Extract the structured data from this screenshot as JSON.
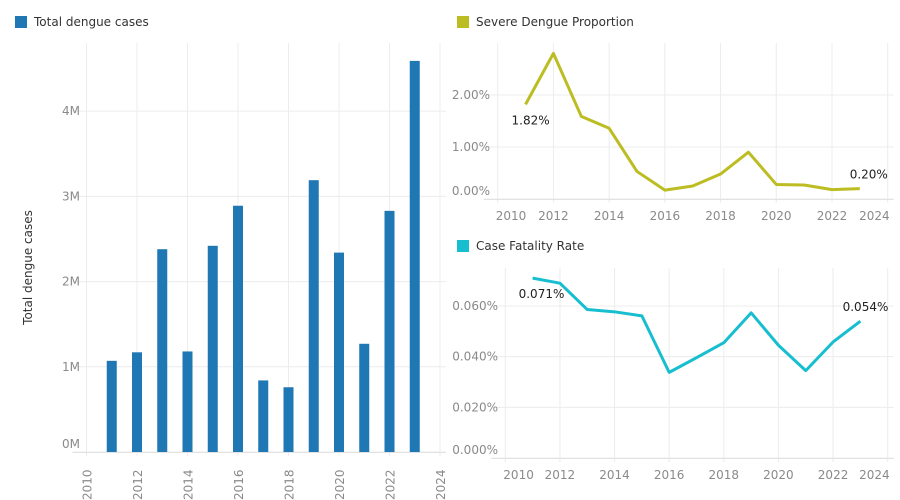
{
  "chart_data": [
    {
      "type": "bar",
      "legend": "Total dengue cases",
      "legend_position": "top-left",
      "ylabel": "Total dengue cases",
      "xlabel": "",
      "color": "#1f77b4",
      "x": [
        2011,
        2012,
        2013,
        2014,
        2015,
        2016,
        2017,
        2018,
        2019,
        2020,
        2021,
        2022,
        2023
      ],
      "values": [
        1070000,
        1170000,
        2380000,
        1180000,
        2420000,
        2890000,
        840000,
        760000,
        3190000,
        2340000,
        1270000,
        2830000,
        4590000
      ],
      "xlim": [
        2010,
        2024
      ],
      "ylim": [
        0,
        4800000
      ],
      "x_ticks": [
        "2010",
        "2012",
        "2014",
        "2016",
        "2018",
        "2020",
        "2022",
        "2024"
      ],
      "y_ticks": [
        {
          "value": 0,
          "label": "0M"
        },
        {
          "value": 1000000,
          "label": "1M"
        },
        {
          "value": 2000000,
          "label": "2M"
        },
        {
          "value": 3000000,
          "label": "3M"
        },
        {
          "value": 4000000,
          "label": "4M"
        }
      ],
      "grid": true
    },
    {
      "type": "line",
      "legend": "Severe Dengue Proportion",
      "legend_position": "top-left",
      "color": "#bcbd22",
      "x": [
        2011,
        2012,
        2013,
        2014,
        2015,
        2016,
        2017,
        2018,
        2019,
        2020,
        2021,
        2022,
        2023
      ],
      "values": [
        1.82,
        2.8,
        1.59,
        1.36,
        0.53,
        0.17,
        0.25,
        0.48,
        0.9,
        0.28,
        0.27,
        0.18,
        0.2
      ],
      "unit": "%",
      "xlim": [
        2010,
        2024
      ],
      "ylim": [
        0,
        3.0
      ],
      "x_ticks": [
        "2010",
        "2012",
        "2014",
        "2016",
        "2018",
        "2020",
        "2022",
        "2024"
      ],
      "y_ticks": [
        {
          "value": 0,
          "label": "0.00%"
        },
        {
          "value": 1,
          "label": "1.00%"
        },
        {
          "value": 2,
          "label": "2.00%"
        }
      ],
      "data_labels": [
        {
          "x": 2011,
          "label": "1.82%"
        },
        {
          "x": 2023,
          "label": "0.20%"
        }
      ],
      "grid": true
    },
    {
      "type": "line",
      "legend": "Case Fatality Rate",
      "legend_position": "top-left",
      "color": "#17becf",
      "x": [
        2011,
        2012,
        2013,
        2014,
        2015,
        2016,
        2017,
        2018,
        2019,
        2020,
        2021,
        2022,
        2023
      ],
      "values": [
        0.071,
        0.069,
        0.0586,
        0.0577,
        0.0561,
        0.0338,
        0.0396,
        0.0455,
        0.0573,
        0.0445,
        0.0345,
        0.0458,
        0.054
      ],
      "unit": "%",
      "xlim": [
        2010,
        2024
      ],
      "ylim": [
        0,
        0.075
      ],
      "x_ticks": [
        "2010",
        "2012",
        "2014",
        "2016",
        "2018",
        "2020",
        "2022",
        "2024"
      ],
      "y_ticks": [
        {
          "value": 0,
          "label": "0.000%"
        },
        {
          "value": 0.02,
          "label": "0.020%"
        },
        {
          "value": 0.04,
          "label": "0.040%"
        },
        {
          "value": 0.06,
          "label": "0.060%"
        }
      ],
      "data_labels": [
        {
          "x": 2011,
          "label": "0.071%"
        },
        {
          "x": 2023,
          "label": "0.054%"
        }
      ],
      "grid": true
    }
  ]
}
